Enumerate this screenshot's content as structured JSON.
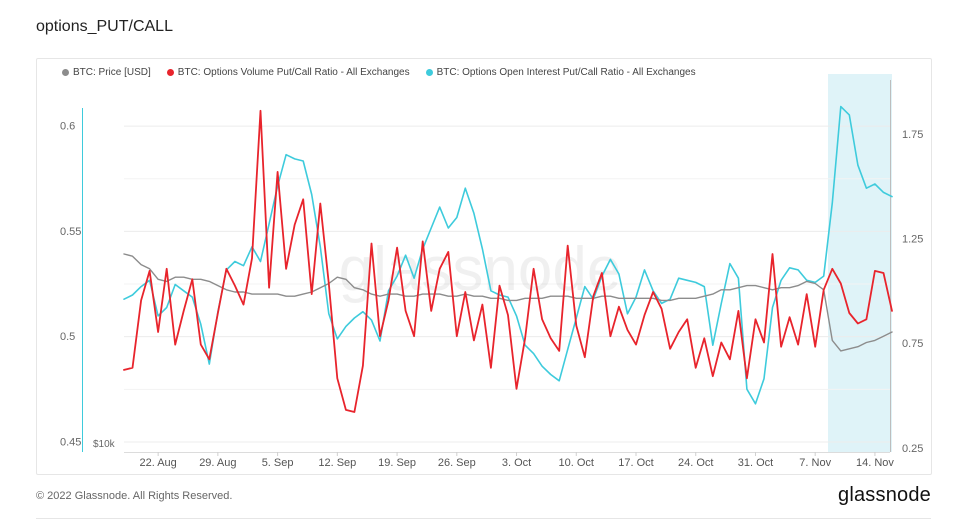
{
  "title": "options_PUT/CALL",
  "footer": {
    "copyright": "© 2022 Glassnode. All Rights Reserved.",
    "brand": "glassnode",
    "watermark": "glassnode"
  },
  "colors": {
    "price": "#8c8c8c",
    "volume": "#e8242c",
    "oi": "#3ecbdc",
    "highlight": "#dff3f8",
    "grid": "#ececec"
  },
  "chart_data": {
    "type": "line",
    "x_ticks": [
      "22. Aug",
      "29. Aug",
      "5. Sep",
      "12. Sep",
      "19. Sep",
      "26. Sep",
      "3. Oct",
      "10. Oct",
      "17. Oct",
      "24. Oct",
      "31. Oct",
      "7. Nov",
      "14. Nov"
    ],
    "x_tick_days": [
      4,
      11,
      18,
      25,
      32,
      39,
      46,
      53,
      60,
      67,
      74,
      81,
      88
    ],
    "x_range_days": [
      0,
      90
    ],
    "left_axis": {
      "ticks": [
        "0.6",
        "0.55",
        "0.5",
        "0.45"
      ],
      "values": [
        0.6,
        0.55,
        0.5,
        0.45
      ],
      "range": [
        0.445,
        0.615
      ]
    },
    "right_axis": {
      "ticks": [
        "1.75",
        "1.25",
        "0.75",
        "0.25"
      ],
      "values": [
        1.75,
        1.25,
        0.75,
        0.25
      ],
      "range": [
        0.23,
        1.94
      ]
    },
    "price_axis": {
      "label": "$10k"
    },
    "highlight_range_days": [
      82.5,
      90
    ],
    "series": [
      {
        "name": "BTC: Price [USD]",
        "axis": "price",
        "values": [
          [
            0,
            0.539
          ],
          [
            1,
            0.538
          ],
          [
            2,
            0.534
          ],
          [
            3,
            0.532
          ],
          [
            4,
            0.527
          ],
          [
            5,
            0.526
          ],
          [
            6,
            0.528
          ],
          [
            7,
            0.528
          ],
          [
            8,
            0.527
          ],
          [
            9,
            0.527
          ],
          [
            10,
            0.526
          ],
          [
            11,
            0.524
          ],
          [
            12,
            0.522
          ],
          [
            13,
            0.521
          ],
          [
            14,
            0.521
          ],
          [
            15,
            0.52
          ],
          [
            16,
            0.52
          ],
          [
            17,
            0.52
          ],
          [
            18,
            0.52
          ],
          [
            19,
            0.519
          ],
          [
            20,
            0.519
          ],
          [
            21,
            0.52
          ],
          [
            22,
            0.521
          ],
          [
            23,
            0.523
          ],
          [
            24,
            0.525
          ],
          [
            25,
            0.528
          ],
          [
            26,
            0.527
          ],
          [
            27,
            0.523
          ],
          [
            28,
            0.522
          ],
          [
            29,
            0.52
          ],
          [
            30,
            0.519
          ],
          [
            31,
            0.52
          ],
          [
            32,
            0.52
          ],
          [
            33,
            0.519
          ],
          [
            34,
            0.519
          ],
          [
            35,
            0.52
          ],
          [
            36,
            0.52
          ],
          [
            37,
            0.52
          ],
          [
            38,
            0.519
          ],
          [
            39,
            0.519
          ],
          [
            40,
            0.52
          ],
          [
            41,
            0.519
          ],
          [
            42,
            0.519
          ],
          [
            43,
            0.518
          ],
          [
            44,
            0.518
          ],
          [
            45,
            0.517
          ],
          [
            46,
            0.517
          ],
          [
            47,
            0.518
          ],
          [
            48,
            0.518
          ],
          [
            49,
            0.518
          ],
          [
            50,
            0.519
          ],
          [
            51,
            0.519
          ],
          [
            52,
            0.519
          ],
          [
            53,
            0.518
          ],
          [
            54,
            0.518
          ],
          [
            55,
            0.518
          ],
          [
            56,
            0.519
          ],
          [
            57,
            0.519
          ],
          [
            58,
            0.518
          ],
          [
            59,
            0.518
          ],
          [
            60,
            0.518
          ],
          [
            61,
            0.518
          ],
          [
            62,
            0.518
          ],
          [
            63,
            0.517
          ],
          [
            64,
            0.517
          ],
          [
            65,
            0.518
          ],
          [
            66,
            0.518
          ],
          [
            67,
            0.518
          ],
          [
            68,
            0.519
          ],
          [
            69,
            0.52
          ],
          [
            70,
            0.522
          ],
          [
            71,
            0.522
          ],
          [
            72,
            0.523
          ],
          [
            73,
            0.524
          ],
          [
            74,
            0.524
          ],
          [
            75,
            0.523
          ],
          [
            76,
            0.522
          ],
          [
            77,
            0.523
          ],
          [
            78,
            0.523
          ],
          [
            79,
            0.524
          ],
          [
            80,
            0.526
          ],
          [
            81,
            0.525
          ],
          [
            82,
            0.522
          ],
          [
            83,
            0.498
          ],
          [
            84,
            0.493
          ],
          [
            85,
            0.494
          ],
          [
            86,
            0.495
          ],
          [
            87,
            0.497
          ],
          [
            88,
            0.498
          ],
          [
            89,
            0.5
          ],
          [
            90,
            0.502
          ]
        ]
      },
      {
        "name": "BTC: Options Volume Put/Call Ratio - All Exchanges",
        "axis": "left",
        "values": [
          [
            0,
            0.484
          ],
          [
            1,
            0.485
          ],
          [
            2,
            0.517
          ],
          [
            3,
            0.531
          ],
          [
            4,
            0.502
          ],
          [
            5,
            0.532
          ],
          [
            6,
            0.496
          ],
          [
            7,
            0.512
          ],
          [
            8,
            0.527
          ],
          [
            9,
            0.496
          ],
          [
            10,
            0.489
          ],
          [
            11,
            0.511
          ],
          [
            12,
            0.532
          ],
          [
            13,
            0.524
          ],
          [
            14,
            0.515
          ],
          [
            15,
            0.537
          ],
          [
            16,
            0.607
          ],
          [
            17,
            0.523
          ],
          [
            18,
            0.578
          ],
          [
            19,
            0.532
          ],
          [
            20,
            0.553
          ],
          [
            21,
            0.565
          ],
          [
            22,
            0.52
          ],
          [
            23,
            0.563
          ],
          [
            24,
            0.525
          ],
          [
            25,
            0.48
          ],
          [
            26,
            0.465
          ],
          [
            27,
            0.464
          ],
          [
            28,
            0.486
          ],
          [
            29,
            0.544
          ],
          [
            30,
            0.5
          ],
          [
            31,
            0.517
          ],
          [
            32,
            0.542
          ],
          [
            33,
            0.512
          ],
          [
            34,
            0.5
          ],
          [
            35,
            0.545
          ],
          [
            36,
            0.512
          ],
          [
            37,
            0.532
          ],
          [
            38,
            0.54
          ],
          [
            39,
            0.5
          ],
          [
            40,
            0.521
          ],
          [
            41,
            0.498
          ],
          [
            42,
            0.515
          ],
          [
            43,
            0.485
          ],
          [
            44,
            0.524
          ],
          [
            45,
            0.51
          ],
          [
            46,
            0.475
          ],
          [
            47,
            0.499
          ],
          [
            48,
            0.532
          ],
          [
            49,
            0.508
          ],
          [
            50,
            0.499
          ],
          [
            51,
            0.493
          ],
          [
            52,
            0.543
          ],
          [
            53,
            0.505
          ],
          [
            54,
            0.49
          ],
          [
            55,
            0.519
          ],
          [
            56,
            0.53
          ],
          [
            57,
            0.5
          ],
          [
            58,
            0.514
          ],
          [
            59,
            0.503
          ],
          [
            60,
            0.496
          ],
          [
            61,
            0.51
          ],
          [
            62,
            0.521
          ],
          [
            63,
            0.513
          ],
          [
            64,
            0.494
          ],
          [
            65,
            0.502
          ],
          [
            66,
            0.508
          ],
          [
            67,
            0.485
          ],
          [
            68,
            0.499
          ],
          [
            69,
            0.481
          ],
          [
            70,
            0.497
          ],
          [
            71,
            0.489
          ],
          [
            72,
            0.512
          ],
          [
            73,
            0.48
          ],
          [
            74,
            0.508
          ],
          [
            75,
            0.497
          ],
          [
            76,
            0.539
          ],
          [
            77,
            0.495
          ],
          [
            78,
            0.509
          ],
          [
            79,
            0.496
          ],
          [
            80,
            0.52
          ],
          [
            81,
            0.495
          ],
          [
            82,
            0.522
          ],
          [
            83,
            0.532
          ],
          [
            84,
            0.525
          ],
          [
            85,
            0.511
          ],
          [
            86,
            0.506
          ],
          [
            87,
            0.508
          ],
          [
            88,
            0.531
          ],
          [
            89,
            0.53
          ],
          [
            90,
            0.512
          ]
        ]
      },
      {
        "name": "BTC: Options Open Interest Put/Call Ratio - All Exchanges",
        "axis": "right",
        "values": [
          [
            0,
            0.96
          ],
          [
            1,
            0.98
          ],
          [
            2,
            1.02
          ],
          [
            3,
            1.05
          ],
          [
            4,
            0.88
          ],
          [
            5,
            0.92
          ],
          [
            6,
            1.03
          ],
          [
            7,
            1.0
          ],
          [
            8,
            0.97
          ],
          [
            9,
            0.84
          ],
          [
            10,
            0.65
          ],
          [
            11,
            0.9
          ],
          [
            12,
            1.1
          ],
          [
            13,
            1.14
          ],
          [
            14,
            1.12
          ],
          [
            15,
            1.21
          ],
          [
            16,
            1.14
          ],
          [
            17,
            1.32
          ],
          [
            18,
            1.5
          ],
          [
            19,
            1.65
          ],
          [
            20,
            1.63
          ],
          [
            21,
            1.62
          ],
          [
            22,
            1.46
          ],
          [
            23,
            1.21
          ],
          [
            24,
            0.89
          ],
          [
            25,
            0.77
          ],
          [
            26,
            0.83
          ],
          [
            27,
            0.87
          ],
          [
            28,
            0.9
          ],
          [
            29,
            0.86
          ],
          [
            30,
            0.76
          ],
          [
            31,
            1.0
          ],
          [
            32,
            1.07
          ],
          [
            33,
            1.17
          ],
          [
            34,
            1.06
          ],
          [
            35,
            1.2
          ],
          [
            36,
            1.3
          ],
          [
            37,
            1.4
          ],
          [
            38,
            1.3
          ],
          [
            39,
            1.35
          ],
          [
            40,
            1.49
          ],
          [
            41,
            1.37
          ],
          [
            42,
            1.2
          ],
          [
            43,
            1.0
          ],
          [
            44,
            0.98
          ],
          [
            45,
            0.97
          ],
          [
            46,
            0.88
          ],
          [
            47,
            0.74
          ],
          [
            48,
            0.7
          ],
          [
            49,
            0.64
          ],
          [
            50,
            0.6
          ],
          [
            51,
            0.57
          ],
          [
            52,
            0.72
          ],
          [
            53,
            0.87
          ],
          [
            54,
            1.02
          ],
          [
            55,
            0.96
          ],
          [
            56,
            1.07
          ],
          [
            57,
            1.15
          ],
          [
            58,
            1.08
          ],
          [
            59,
            0.89
          ],
          [
            60,
            0.97
          ],
          [
            61,
            1.1
          ],
          [
            62,
            1.0
          ],
          [
            63,
            0.94
          ],
          [
            64,
            0.96
          ],
          [
            65,
            1.06
          ],
          [
            66,
            1.05
          ],
          [
            67,
            1.04
          ],
          [
            68,
            1.02
          ],
          [
            69,
            0.74
          ],
          [
            70,
            0.94
          ],
          [
            71,
            1.13
          ],
          [
            72,
            1.06
          ],
          [
            73,
            0.53
          ],
          [
            74,
            0.46
          ],
          [
            75,
            0.58
          ],
          [
            76,
            0.92
          ],
          [
            77,
            1.05
          ],
          [
            78,
            1.11
          ],
          [
            79,
            1.1
          ],
          [
            80,
            1.05
          ],
          [
            81,
            1.04
          ],
          [
            82,
            1.07
          ],
          [
            83,
            1.42
          ],
          [
            84,
            1.88
          ],
          [
            85,
            1.84
          ],
          [
            86,
            1.6
          ],
          [
            87,
            1.49
          ],
          [
            88,
            1.51
          ],
          [
            89,
            1.47
          ],
          [
            90,
            1.45
          ]
        ]
      }
    ]
  }
}
